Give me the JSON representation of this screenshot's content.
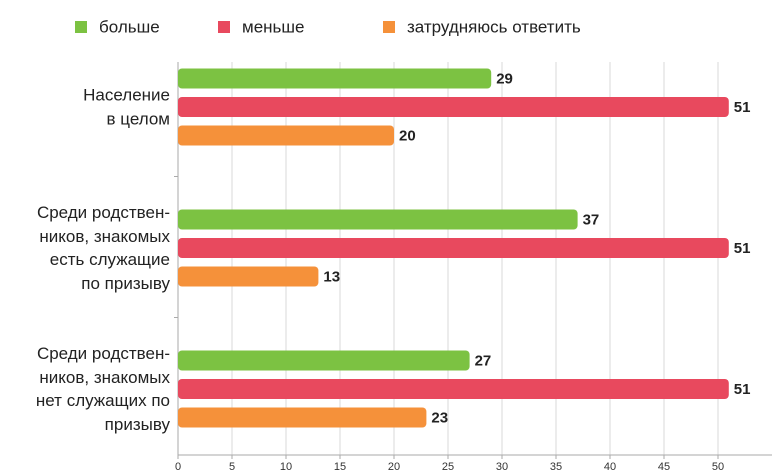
{
  "chart_data": {
    "type": "bar",
    "orientation": "horizontal",
    "categories": [
      "Население\nв целом",
      "Среди родствен-\nников, знакомых\nесть служащие\nпо призыву",
      "Среди родствен-\nников, знакомых\nнет служащих по\nпризыву"
    ],
    "series": [
      {
        "name": "больше",
        "color": "#7cc242",
        "values": [
          29,
          37,
          27
        ]
      },
      {
        "name": "меньше",
        "color": "#e8495e",
        "values": [
          51,
          51,
          51
        ]
      },
      {
        "name": "затрудняюсь ответить",
        "color": "#f5913a",
        "values": [
          20,
          13,
          23
        ]
      }
    ],
    "xlim": [
      0,
      55
    ],
    "xticks": [
      0,
      5,
      10,
      15,
      20,
      25,
      30,
      35,
      40,
      45,
      50
    ],
    "grid": true,
    "legend": "top"
  }
}
